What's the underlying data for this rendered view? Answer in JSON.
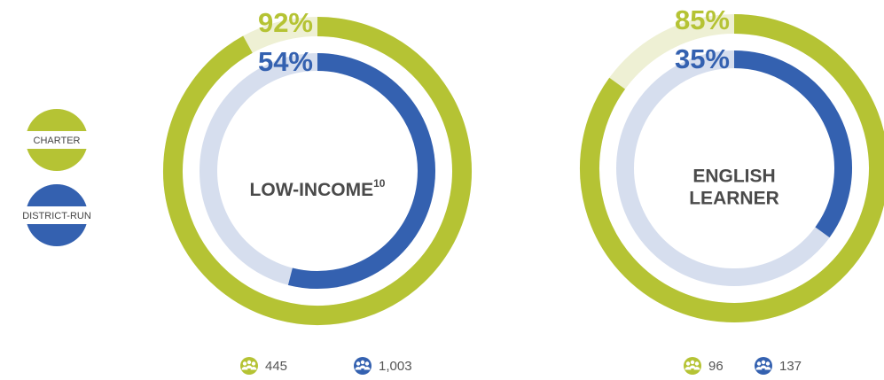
{
  "legend": [
    {
      "name": "CHARTER",
      "color": "#b5c334"
    },
    {
      "name": "DISTRICT-RUN",
      "color": "#3461b0"
    }
  ],
  "chart_data": [
    {
      "type": "donut",
      "title_lines": [
        "LOW-INCOME"
      ],
      "title_note": "10",
      "ylim": [
        0,
        100
      ],
      "values": [
        92,
        54
      ],
      "value_labels": [
        "92%",
        "54%"
      ],
      "counts": [
        445,
        {
          "value": 1003,
          "label": "1,003"
        }
      ]
    },
    {
      "type": "donut",
      "title_lines": [
        "ENGLISH",
        "LEARNER"
      ],
      "ylim": [
        0,
        100
      ],
      "values": [
        85,
        35
      ],
      "value_labels": [
        "85%",
        "35%"
      ],
      "counts": [
        96,
        137
      ]
    }
  ]
}
